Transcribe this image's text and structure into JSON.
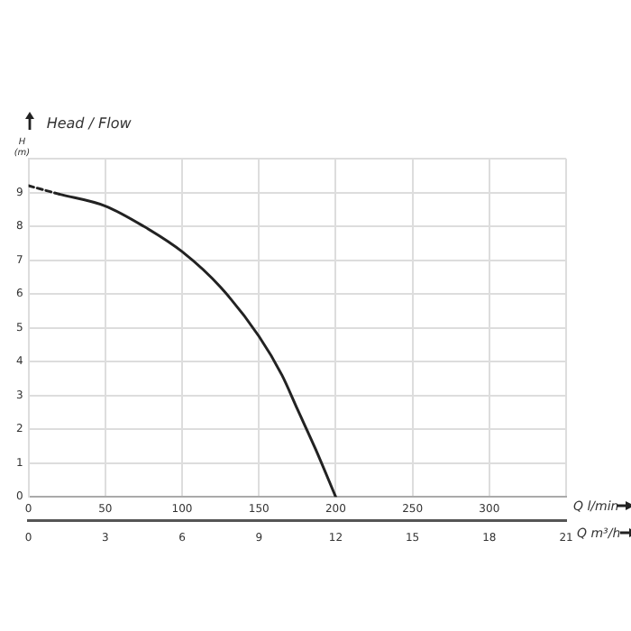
{
  "chart_data": {
    "type": "line",
    "title": "Head / Flow",
    "ylabel": "H (m)",
    "xlabel": "Q l/min",
    "x2label": "Q m³/h",
    "series": [
      {
        "color": "#222222",
        "line_style": "dashed",
        "x": [
          0,
          20
        ],
        "values": [
          9.2,
          8.95
        ]
      },
      {
        "color": "#222222",
        "line_style": "solid",
        "x": [
          20,
          50,
          75,
          100,
          125,
          150,
          165,
          175,
          187,
          200
        ],
        "values": [
          8.95,
          8.6,
          8.0,
          7.25,
          6.2,
          4.75,
          3.6,
          2.6,
          1.4,
          0
        ]
      }
    ],
    "xlim": [
      0,
      350
    ],
    "xticks": [
      0,
      50,
      100,
      150,
      200,
      250,
      300,
      {
        "value": 350,
        "label": null
      }
    ],
    "x2lim": [
      0,
      21
    ],
    "x2ticks": [
      0,
      3,
      6,
      9,
      12,
      15,
      18,
      21
    ],
    "ylim": [
      0,
      10
    ],
    "yticks": [
      0,
      1,
      2,
      3,
      4,
      5,
      6,
      7,
      8,
      9,
      {
        "value": 10,
        "label": null
      }
    ],
    "grid": true,
    "marker": "none",
    "legend": false
  }
}
